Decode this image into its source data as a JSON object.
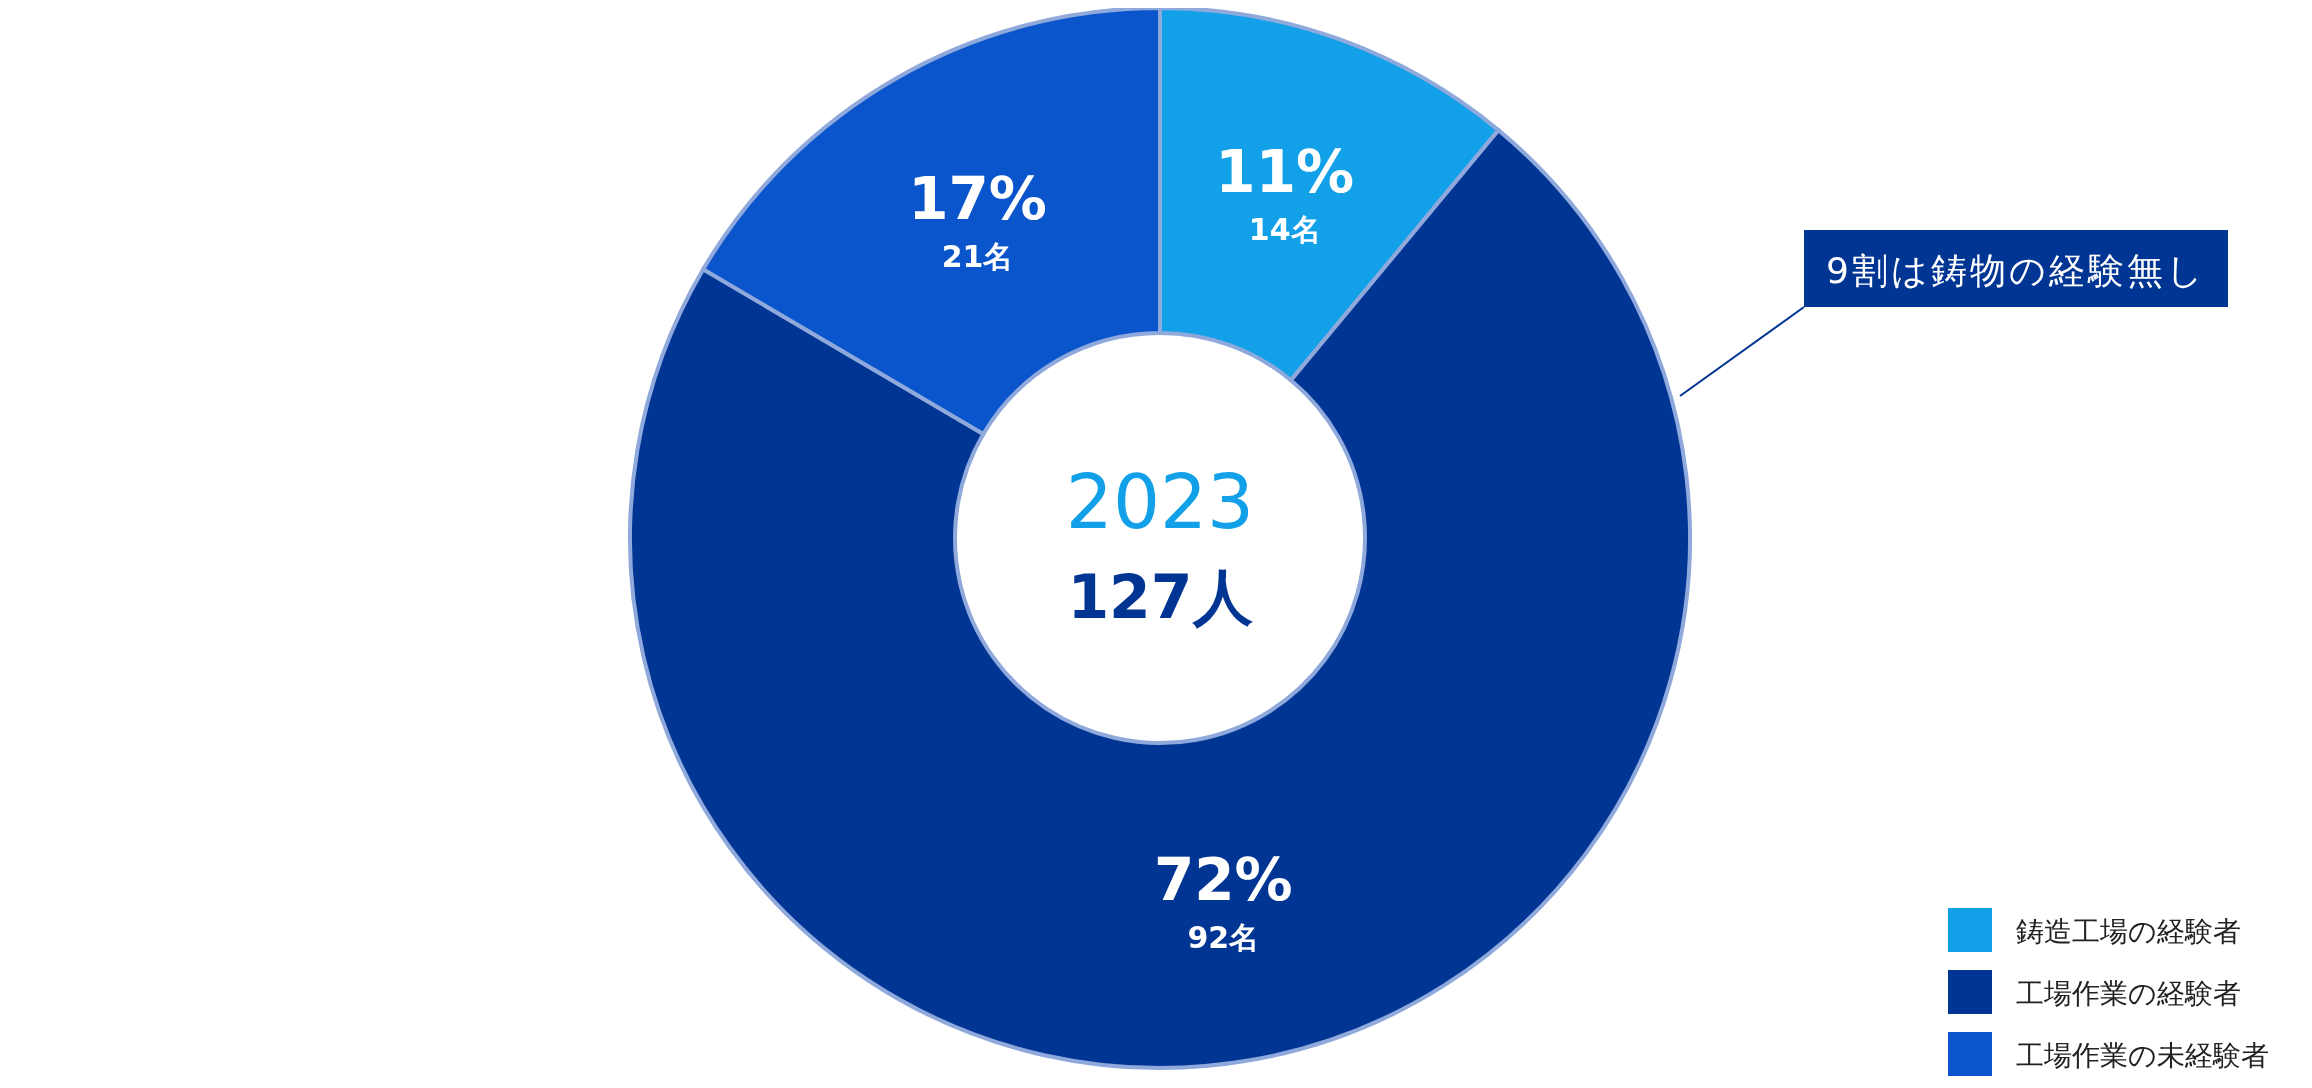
{
  "chart_data": {
    "type": "donut",
    "categories": [
      "鋳造工場の経験者",
      "工場作業の経験者",
      "工場作業の未経験者"
    ],
    "values": [
      14,
      92,
      21
    ],
    "colors": [
      "#12a0e8",
      "#003594",
      "#0a55cc"
    ],
    "value_labels": [
      "11%\n14名",
      "72%\n92名",
      "17%\n21名"
    ],
    "annotations": [
      "2023",
      "127人",
      "9割は鋳物の経験無し"
    ],
    "legend": "bottom right"
  }
}
